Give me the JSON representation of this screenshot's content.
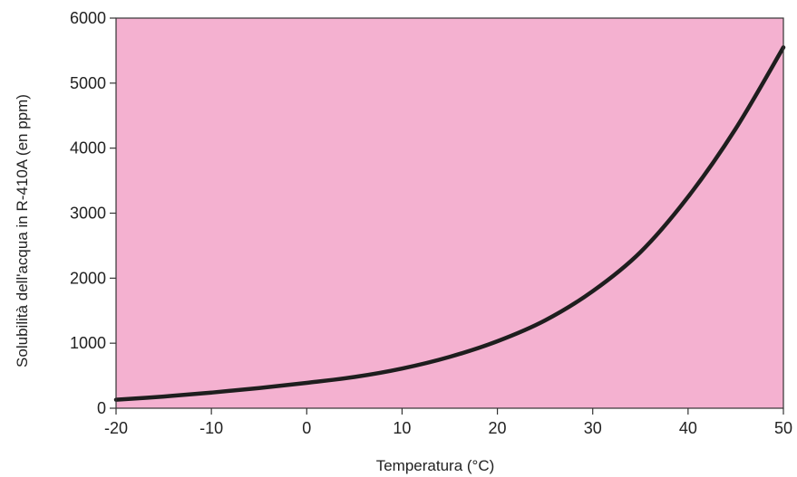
{
  "chart_data": {
    "type": "line",
    "title": "",
    "xlabel": "Temperatura (°C)",
    "ylabel": "Solubilità dell'acqua in R-410A (en ppm)",
    "xlim": [
      -20,
      50
    ],
    "ylim": [
      0,
      6000
    ],
    "x_ticks": [
      -20,
      -10,
      0,
      10,
      20,
      30,
      40,
      50
    ],
    "y_ticks": [
      0,
      1000,
      2000,
      3000,
      4000,
      5000,
      6000
    ],
    "grid": false,
    "legend": "none",
    "plot_background": "#f4b1d0",
    "line_color": "#1e1e1e",
    "series": [
      {
        "x": [
          -20,
          -15,
          -10,
          -5,
          0,
          5,
          10,
          15,
          20,
          25,
          30,
          35,
          40,
          45,
          50
        ],
        "y": [
          130,
          180,
          240,
          310,
          390,
          480,
          610,
          790,
          1030,
          1350,
          1800,
          2400,
          3250,
          4300,
          5550
        ]
      }
    ]
  }
}
